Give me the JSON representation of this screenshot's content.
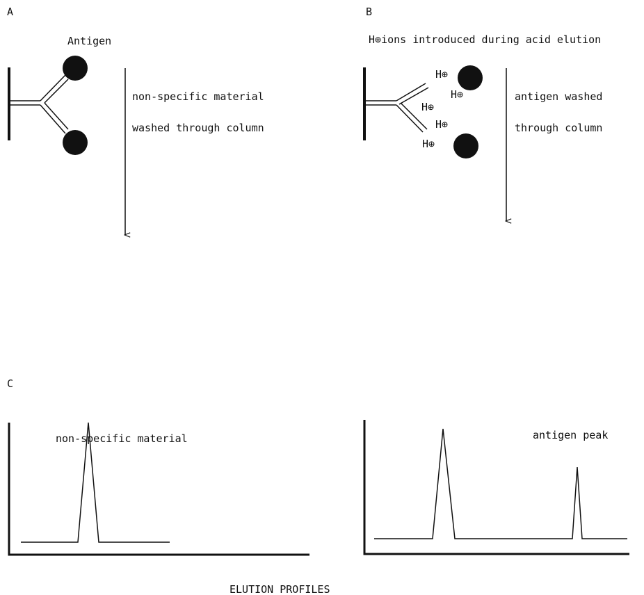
{
  "panels": [
    {
      "label": "A",
      "title": "Antigen",
      "notes": [
        "non-specific material",
        "washed through column"
      ]
    },
    {
      "label": "B",
      "title": "H⊕ions introduced during acid elution",
      "ion_labels": [
        "H⊕",
        "H⊕",
        "H⊕",
        "H⊕",
        "H⊕"
      ],
      "notes": [
        "antigen washed",
        "through column"
      ]
    },
    {
      "label": "C",
      "profiles": [
        {
          "label": "non-specific material"
        },
        {
          "label": "antigen peak"
        }
      ]
    }
  ],
  "caption": "ELUTION PROFILES"
}
